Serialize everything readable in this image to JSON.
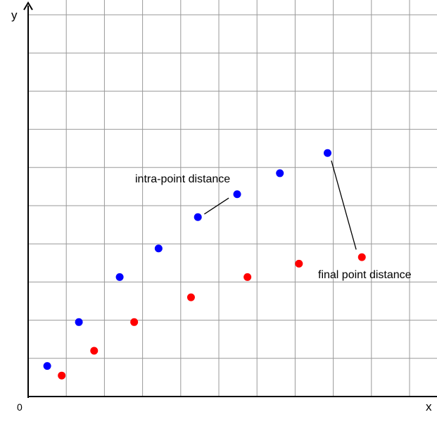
{
  "chart_data": {
    "type": "scatter",
    "title": "",
    "xlabel": "x",
    "ylabel": "y",
    "origin_label": "0",
    "xlim": [
      0,
      11
    ],
    "ylim": [
      0,
      10
    ],
    "grid": true,
    "series": [
      {
        "color": "#0000ff",
        "points": [
          [
            0.5,
            0.8
          ],
          [
            1.33,
            1.95
          ],
          [
            2.4,
            3.13
          ],
          [
            3.42,
            3.88
          ],
          [
            4.45,
            4.7
          ],
          [
            5.48,
            5.3
          ],
          [
            6.6,
            5.85
          ],
          [
            7.85,
            6.38
          ]
        ]
      },
      {
        "color": "#ff0000",
        "points": [
          [
            0.88,
            0.55
          ],
          [
            1.73,
            1.2
          ],
          [
            2.78,
            1.95
          ],
          [
            4.27,
            2.6
          ],
          [
            5.75,
            3.13
          ],
          [
            7.1,
            3.48
          ],
          [
            8.75,
            3.65
          ]
        ]
      }
    ],
    "annotations": [
      {
        "text": "intra-point distance",
        "from": [
          4.45,
          4.7
        ],
        "to": [
          5.48,
          5.3
        ]
      },
      {
        "text": "final point distance",
        "from": [
          7.85,
          6.38
        ],
        "to": [
          8.75,
          3.65
        ]
      }
    ]
  }
}
